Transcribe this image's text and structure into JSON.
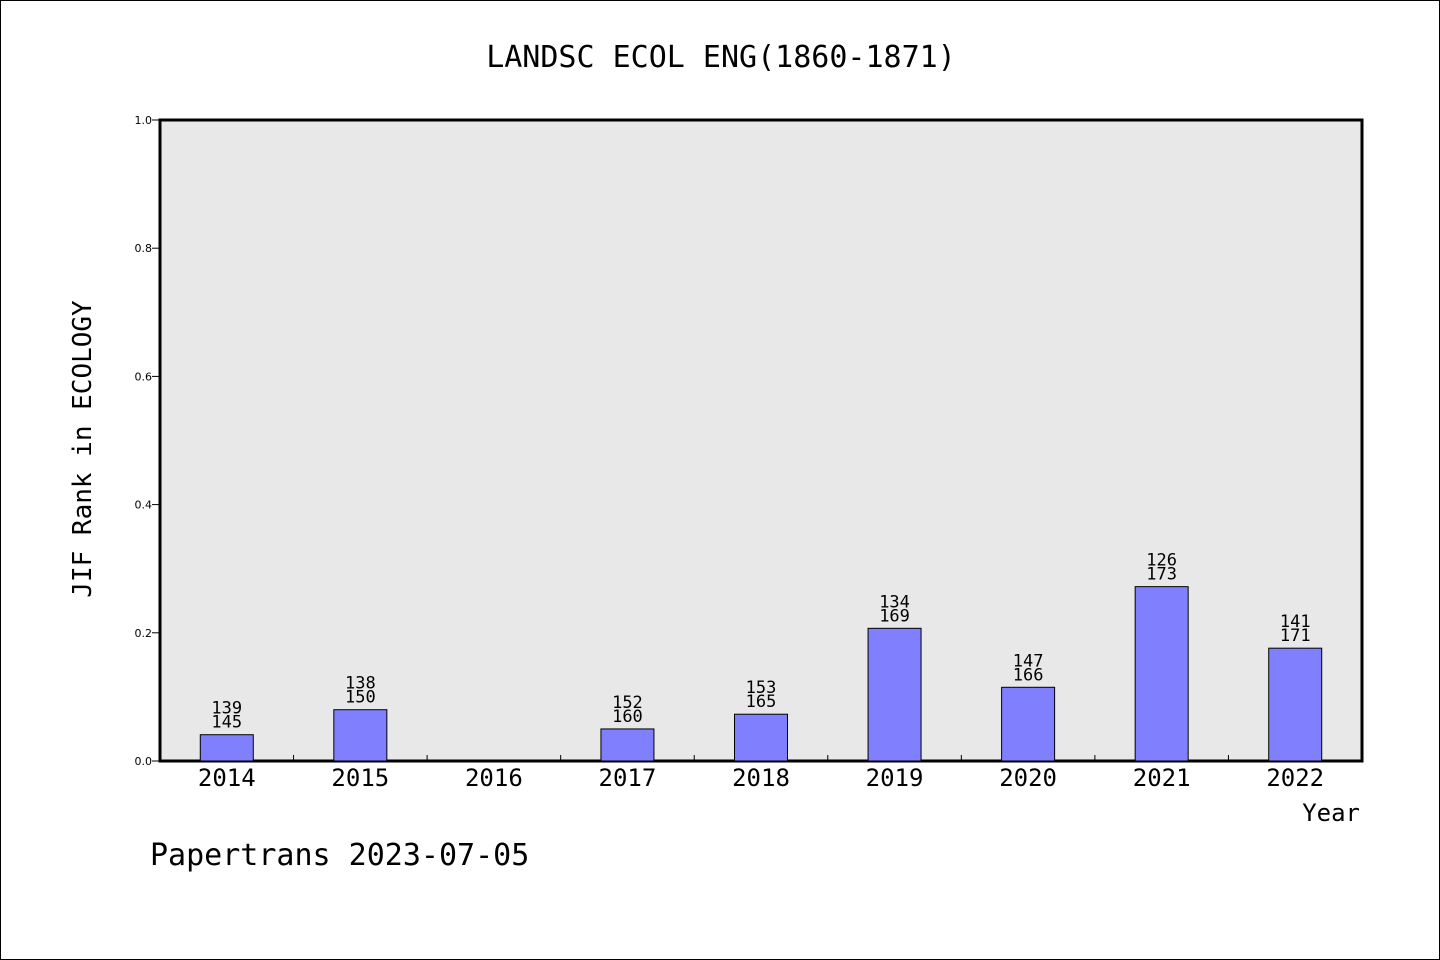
{
  "chart_data": {
    "type": "bar",
    "title": "LANDSC ECOL ENG(1860-1871)",
    "xlabel": "Year",
    "ylabel": "JIF Rank in ECOLOGY",
    "ylim": [
      0,
      1.0
    ],
    "yticks": [
      "0.0",
      "0.2",
      "0.4",
      "0.6",
      "0.8",
      "1.0"
    ],
    "categories": [
      "2014",
      "2015",
      "2016",
      "2017",
      "2018",
      "2019",
      "2020",
      "2021",
      "2022"
    ],
    "values": [
      0.041,
      0.08,
      null,
      0.05,
      0.073,
      0.207,
      0.115,
      0.272,
      0.176
    ],
    "rank_labels": [
      "139",
      "138",
      "",
      "152",
      "153",
      "134",
      "147",
      "126",
      "141"
    ],
    "total_labels": [
      "145",
      "150",
      "",
      "160",
      "165",
      "169",
      "166",
      "173",
      "171"
    ],
    "bar_color": "#8080ff",
    "plot_background": "#e8e8e8",
    "grid": false,
    "footer": "Papertrans 2023-07-05"
  }
}
